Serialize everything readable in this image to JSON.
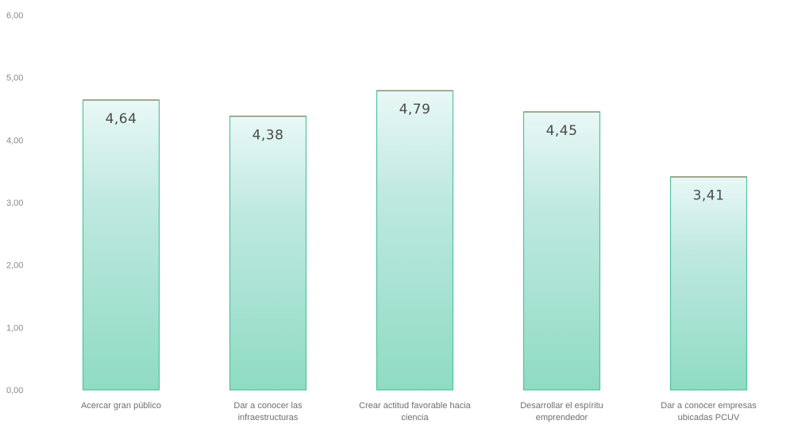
{
  "chart_data": {
    "type": "bar",
    "categories": [
      [
        "Acercar gran público"
      ],
      [
        "Dar a conocer las",
        "infraestructuras"
      ],
      [
        "Crear actitud favorable hacia",
        "ciencia"
      ],
      [
        "Desarrollar el espíritu",
        "emprendedor"
      ],
      [
        "Dar a conocer empresas",
        "ubicadas PCUV"
      ]
    ],
    "values": [
      4.64,
      4.38,
      4.79,
      4.45,
      3.41
    ],
    "data_labels": [
      "4,64",
      "4,38",
      "4,79",
      "4,45",
      "3,41"
    ],
    "ylim": [
      0,
      6
    ],
    "yticks": [
      0,
      1,
      2,
      3,
      4,
      5,
      6
    ],
    "ytick_labels": [
      "0,00",
      "1,00",
      "2,00",
      "3,00",
      "4,00",
      "5,00",
      "6,00"
    ],
    "grid": false,
    "legend": "none",
    "colors": {
      "bar_top": "#e9f8f6",
      "bar_mid": "#bfe9e0",
      "bar_bottom": "#8fdbc3",
      "bar_stroke": "#4fc3a4",
      "bar_top_edge": "#8a8a6a",
      "tick_text": "#8a8a8a",
      "category_text": "#6f6f6f",
      "data_label_text": "#4a4a4a"
    }
  }
}
